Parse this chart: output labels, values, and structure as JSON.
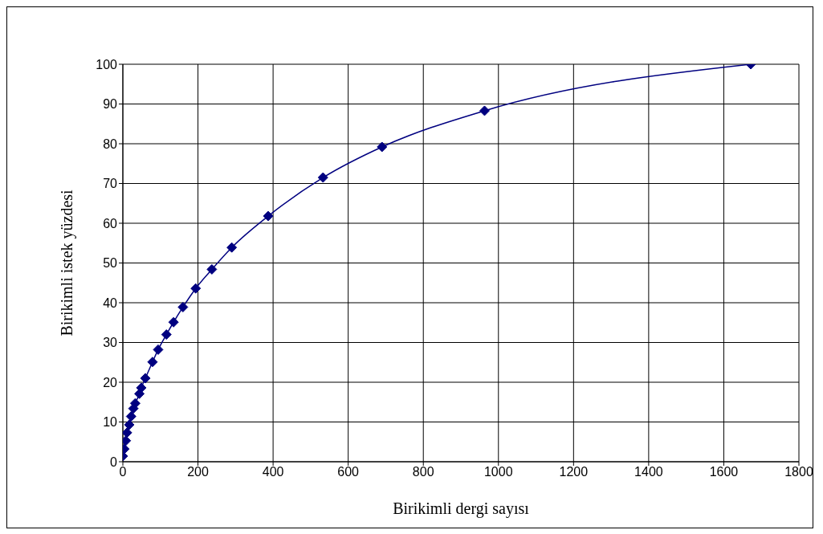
{
  "chart_data": {
    "type": "line",
    "xlabel": "Birikimli dergi sayısı",
    "ylabel": "Birikimli istek yüzdesi",
    "x": [
      0,
      4,
      8,
      11,
      17,
      22,
      28,
      33,
      44,
      49,
      60,
      79,
      94,
      116,
      135,
      160,
      194,
      237,
      290,
      387,
      533,
      690,
      963,
      1672
    ],
    "series": [
      {
        "color": "#000080",
        "values": [
          1.4,
          3.2,
          5.3,
          7.3,
          9.3,
          11.4,
          13.4,
          14.7,
          17.1,
          18.6,
          21,
          25.1,
          28.2,
          32,
          35.1,
          38.9,
          43.6,
          48.4,
          53.9,
          61.8,
          71.5,
          79.2,
          88.3,
          100
        ]
      }
    ],
    "xlim": [
      0,
      1800
    ],
    "xticks": [
      0,
      200,
      400,
      600,
      800,
      1000,
      1200,
      1400,
      1600,
      1800
    ],
    "ylim": [
      0,
      100
    ],
    "yticks": [
      0,
      10,
      20,
      30,
      40,
      50,
      60,
      70,
      80,
      90,
      100
    ],
    "grid": true,
    "marker": "diamond",
    "line_style": "solid",
    "legend": false
  }
}
